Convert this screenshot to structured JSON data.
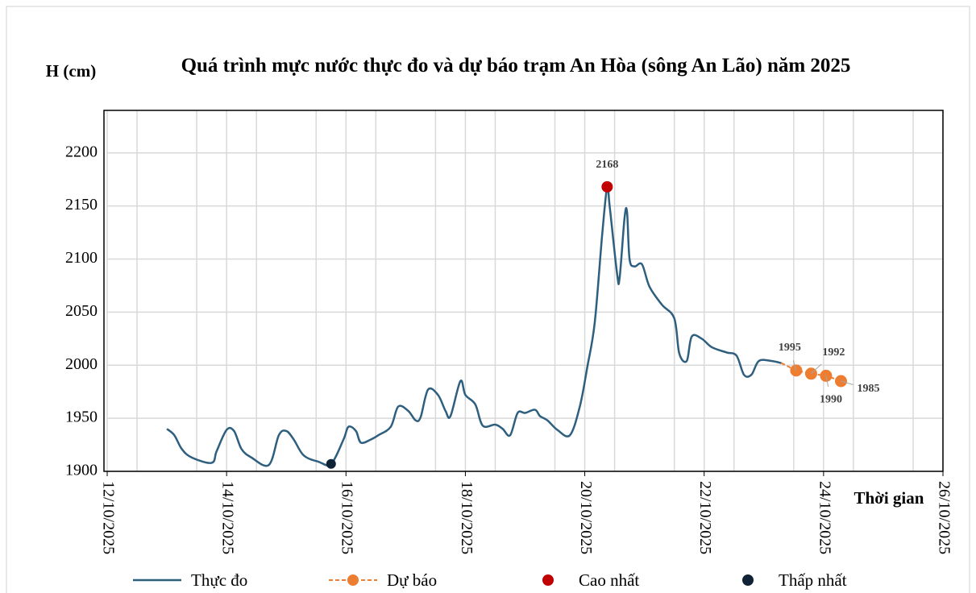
{
  "chart_data": {
    "type": "line",
    "title": "Quá trình mực nước thực đo và dự báo trạm An Hòa (sông An Lão) năm 2025",
    "y_label": "H (cm)",
    "x_label": "Thời gian",
    "ylim": [
      1900,
      2240
    ],
    "yticks": [
      1900,
      1950,
      2000,
      2050,
      2100,
      2150,
      2200
    ],
    "xlim": [
      "2025-10-12T00:00",
      "2025-10-26T00:00"
    ],
    "xticks": [
      {
        "value": "2025-10-12T00:00",
        "label": "12/10/2025"
      },
      {
        "value": "2025-10-14T00:00",
        "label": "14/10/2025"
      },
      {
        "value": "2025-10-16T00:00",
        "label": "16/10/2025"
      },
      {
        "value": "2025-10-18T00:00",
        "label": "18/10/2025"
      },
      {
        "value": "2025-10-20T00:00",
        "label": "20/10/2025"
      },
      {
        "value": "2025-10-22T00:00",
        "label": "22/10/2025"
      },
      {
        "value": "2025-10-24T00:00",
        "label": "24/10/2025"
      },
      {
        "value": "2025-10-26T00:00",
        "label": "26/10/2025"
      }
    ],
    "grid": true,
    "series": [
      {
        "name": "Thực đo",
        "color": "#2e5f7f",
        "style": "line",
        "x": [
          "2025-10-13T00:00",
          "2025-10-13T03:00",
          "2025-10-13T06:00",
          "2025-10-13T10:00",
          "2025-10-13T18:00",
          "2025-10-13T20:00",
          "2025-10-14T00:00",
          "2025-10-14T03:00",
          "2025-10-14T06:00",
          "2025-10-14T10:00",
          "2025-10-14T17:00",
          "2025-10-14T21:00",
          "2025-10-15T00:00",
          "2025-10-15T03:00",
          "2025-10-15T07:00",
          "2025-10-15T13:00",
          "2025-10-15T18:00",
          "2025-10-15T23:00",
          "2025-10-16T01:00",
          "2025-10-16T04:00",
          "2025-10-16T06:00",
          "2025-10-16T10:00",
          "2025-10-16T13:00",
          "2025-10-16T18:00",
          "2025-10-16T21:00",
          "2025-10-17T01:00",
          "2025-10-17T04:00",
          "2025-10-17T06:00",
          "2025-10-17T09:00",
          "2025-10-17T13:00",
          "2025-10-17T16:00",
          "2025-10-17T18:00",
          "2025-10-17T22:00",
          "2025-10-18T00:00",
          "2025-10-18T04:00",
          "2025-10-18T07:00",
          "2025-10-18T12:00",
          "2025-10-18T15:00",
          "2025-10-18T18:00",
          "2025-10-18T21:00",
          "2025-10-19T00:00",
          "2025-10-19T04:00",
          "2025-10-19T06:00",
          "2025-10-19T09:00",
          "2025-10-19T13:00",
          "2025-10-19T18:00",
          "2025-10-19T22:00",
          "2025-10-20T01:00",
          "2025-10-20T04:00",
          "2025-10-20T07:00",
          "2025-10-20T09:00",
          "2025-10-20T10:00",
          "2025-10-20T13:00",
          "2025-10-20T14:00",
          "2025-10-20T16:00",
          "2025-10-20T17:00",
          "2025-10-20T18:00",
          "2025-10-20T20:00",
          "2025-10-20T23:00",
          "2025-10-21T02:00",
          "2025-10-21T07:00",
          "2025-10-21T12:00",
          "2025-10-21T14:00",
          "2025-10-21T17:00",
          "2025-10-21T19:00",
          "2025-10-21T23:00",
          "2025-10-22T03:00",
          "2025-10-22T09:00",
          "2025-10-22T13:00",
          "2025-10-22T16:00",
          "2025-10-22T19:00",
          "2025-10-22T22:00",
          "2025-10-23T03:00",
          "2025-10-23T07:00"
        ],
        "values": [
          1940,
          1934,
          1921,
          1913,
          1908,
          1919,
          1939,
          1938,
          1921,
          1913,
          1906,
          1934,
          1938,
          1930,
          1915,
          1909,
          1907,
          1930,
          1942,
          1938,
          1927,
          1930,
          1934,
          1942,
          1961,
          1957,
          1948,
          1951,
          1977,
          1972,
          1957,
          1952,
          1985,
          1972,
          1963,
          1943,
          1944,
          1940,
          1934,
          1955,
          1955,
          1958,
          1952,
          1948,
          1939,
          1934,
          1961,
          1998,
          2040,
          2123,
          2168,
          2150,
          2086,
          2082,
          2139,
          2144,
          2100,
          2093,
          2095,
          2074,
          2057,
          2044,
          2011,
          2004,
          2027,
          2025,
          2017,
          2012,
          2009,
          1991,
          1991,
          2004,
          2004,
          2002
        ]
      },
      {
        "name": "Dự báo",
        "color": "#ed7d31",
        "style": "dashed-markers",
        "x": [
          "2025-10-23T13:00",
          "2025-10-23T19:00",
          "2025-10-24T01:00",
          "2025-10-24T07:00"
        ],
        "values": [
          1995,
          1992,
          1990,
          1985
        ]
      },
      {
        "name": "Cao nhất",
        "color": "#c00000",
        "style": "marker",
        "x": [
          "2025-10-20T09:00"
        ],
        "values": [
          2168
        ]
      },
      {
        "name": "Thấp nhất",
        "color": "#0f2236",
        "style": "marker",
        "x": [
          "2025-10-15T18:00"
        ],
        "values": [
          1907
        ]
      }
    ]
  }
}
